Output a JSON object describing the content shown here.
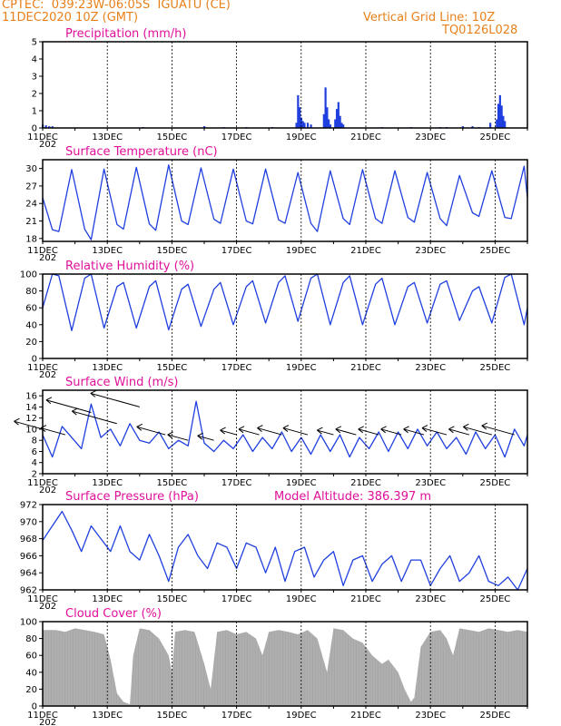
{
  "header": {
    "station": "CPTEC:  039:23W-06:05S  IGUATU (CE)",
    "run": "11DEC2020 10Z (GMT)",
    "grid_note": "Vertical Grid Line: 10Z",
    "code": "TQ0126L028"
  },
  "colors": {
    "header": "#e8801a",
    "title": "#e0109a",
    "series": "#1f3fdf",
    "cloud": "#a8a8a8"
  },
  "x_axis": {
    "labels": [
      "11DEC",
      "13DEC",
      "15DEC",
      "17DEC",
      "19DEC",
      "21DEC",
      "23DEC",
      "25DEC"
    ],
    "label_days": [
      11,
      13,
      15,
      17,
      19,
      21,
      23,
      25
    ],
    "range_days": [
      11,
      26
    ],
    "sub_label": "202"
  },
  "chart_data": [
    {
      "id": "precip",
      "type": "bar",
      "title": "Precipitation (mm/h)",
      "ylim": [
        0,
        5
      ],
      "yticks": [
        0,
        1,
        2,
        3,
        4,
        5
      ],
      "bars": [
        [
          11.0,
          0.2
        ],
        [
          11.1,
          0.15
        ],
        [
          11.2,
          0.1
        ],
        [
          11.3,
          0.1
        ],
        [
          14.1,
          0.05
        ],
        [
          16.0,
          0.1
        ],
        [
          16.6,
          0.05
        ],
        [
          17.3,
          0.05
        ],
        [
          18.1,
          0.05
        ],
        [
          18.85,
          0.3
        ],
        [
          18.9,
          1.9
        ],
        [
          18.95,
          1.2
        ],
        [
          19.0,
          0.6
        ],
        [
          19.05,
          0.4
        ],
        [
          19.1,
          0.3
        ],
        [
          19.2,
          0.3
        ],
        [
          19.3,
          0.2
        ],
        [
          19.7,
          0.8
        ],
        [
          19.75,
          2.35
        ],
        [
          19.8,
          1.2
        ],
        [
          19.85,
          0.5
        ],
        [
          19.9,
          0.2
        ],
        [
          20.05,
          0.5
        ],
        [
          20.1,
          1.1
        ],
        [
          20.15,
          1.5
        ],
        [
          20.2,
          0.7
        ],
        [
          20.25,
          0.3
        ],
        [
          20.3,
          0.2
        ],
        [
          21.5,
          0.05
        ],
        [
          22.4,
          0.05
        ],
        [
          23.3,
          0.05
        ],
        [
          23.5,
          0.05
        ],
        [
          24.0,
          0.1
        ],
        [
          24.3,
          0.1
        ],
        [
          24.5,
          0.05
        ],
        [
          24.85,
          0.3
        ],
        [
          25.05,
          0.5
        ],
        [
          25.1,
          1.4
        ],
        [
          25.15,
          1.9
        ],
        [
          25.2,
          1.3
        ],
        [
          25.25,
          0.7
        ],
        [
          25.3,
          0.4
        ]
      ]
    },
    {
      "id": "temp",
      "type": "line",
      "title": "Surface Temperature (nC)",
      "ylim": [
        17.5,
        31.5
      ],
      "yticks": [
        18,
        21,
        24,
        27,
        30
      ],
      "points": [
        [
          11.0,
          25.0
        ],
        [
          11.3,
          19.5
        ],
        [
          11.5,
          19.2
        ],
        [
          11.9,
          29.8
        ],
        [
          12.3,
          19.6
        ],
        [
          12.5,
          17.8
        ],
        [
          12.9,
          29.9
        ],
        [
          13.3,
          20.4
        ],
        [
          13.5,
          19.6
        ],
        [
          13.9,
          30.2
        ],
        [
          14.3,
          20.5
        ],
        [
          14.5,
          19.4
        ],
        [
          14.9,
          30.6
        ],
        [
          15.3,
          21.0
        ],
        [
          15.5,
          20.4
        ],
        [
          15.9,
          30.1
        ],
        [
          16.3,
          21.3
        ],
        [
          16.5,
          20.6
        ],
        [
          16.9,
          29.9
        ],
        [
          17.3,
          21.0
        ],
        [
          17.5,
          20.5
        ],
        [
          17.9,
          29.9
        ],
        [
          18.3,
          21.2
        ],
        [
          18.5,
          20.6
        ],
        [
          18.9,
          29.3
        ],
        [
          19.3,
          20.6
        ],
        [
          19.5,
          19.2
        ],
        [
          19.9,
          29.6
        ],
        [
          20.3,
          21.4
        ],
        [
          20.5,
          20.4
        ],
        [
          20.9,
          29.8
        ],
        [
          21.3,
          21.4
        ],
        [
          21.5,
          20.6
        ],
        [
          21.9,
          29.6
        ],
        [
          22.3,
          21.6
        ],
        [
          22.5,
          20.8
        ],
        [
          22.9,
          29.3
        ],
        [
          23.3,
          21.4
        ],
        [
          23.5,
          20.2
        ],
        [
          23.9,
          28.8
        ],
        [
          24.3,
          22.4
        ],
        [
          24.5,
          21.8
        ],
        [
          24.9,
          29.6
        ],
        [
          25.3,
          21.6
        ],
        [
          25.5,
          21.4
        ],
        [
          25.9,
          30.4
        ],
        [
          26.0,
          25.0
        ]
      ]
    },
    {
      "id": "rh",
      "type": "line",
      "title": "Relative Humidity (%)",
      "ylim": [
        0,
        100
      ],
      "yticks": [
        0,
        20,
        40,
        60,
        80,
        100
      ],
      "points": [
        [
          11.0,
          60
        ],
        [
          11.3,
          100
        ],
        [
          11.5,
          98
        ],
        [
          11.9,
          33
        ],
        [
          12.3,
          95
        ],
        [
          12.5,
          100
        ],
        [
          12.9,
          36
        ],
        [
          13.3,
          85
        ],
        [
          13.5,
          90
        ],
        [
          13.9,
          36
        ],
        [
          14.3,
          85
        ],
        [
          14.5,
          92
        ],
        [
          14.9,
          34
        ],
        [
          15.3,
          82
        ],
        [
          15.5,
          88
        ],
        [
          15.9,
          38
        ],
        [
          16.3,
          82
        ],
        [
          16.5,
          90
        ],
        [
          16.9,
          40
        ],
        [
          17.3,
          85
        ],
        [
          17.5,
          92
        ],
        [
          17.9,
          42
        ],
        [
          18.3,
          90
        ],
        [
          18.5,
          98
        ],
        [
          18.9,
          44
        ],
        [
          19.3,
          95
        ],
        [
          19.5,
          100
        ],
        [
          19.9,
          40
        ],
        [
          20.3,
          90
        ],
        [
          20.5,
          98
        ],
        [
          20.9,
          40
        ],
        [
          21.3,
          88
        ],
        [
          21.5,
          95
        ],
        [
          21.9,
          40
        ],
        [
          22.3,
          85
        ],
        [
          22.5,
          90
        ],
        [
          22.9,
          42
        ],
        [
          23.3,
          88
        ],
        [
          23.5,
          92
        ],
        [
          23.9,
          45
        ],
        [
          24.3,
          80
        ],
        [
          24.5,
          85
        ],
        [
          24.9,
          42
        ],
        [
          25.3,
          96
        ],
        [
          25.5,
          100
        ],
        [
          25.9,
          40
        ],
        [
          26.0,
          60
        ]
      ]
    },
    {
      "id": "wind",
      "type": "line",
      "title": "Surface Wind (m/s)",
      "ylim": [
        2,
        17
      ],
      "yticks": [
        2,
        4,
        6,
        8,
        10,
        12,
        14,
        16
      ],
      "points": [
        [
          11.0,
          9.0
        ],
        [
          11.3,
          5.0
        ],
        [
          11.6,
          10.5
        ],
        [
          11.9,
          8.5
        ],
        [
          12.2,
          6.5
        ],
        [
          12.5,
          14.5
        ],
        [
          12.8,
          8.5
        ],
        [
          13.1,
          10.0
        ],
        [
          13.4,
          7.0
        ],
        [
          13.7,
          11.0
        ],
        [
          14.0,
          8.0
        ],
        [
          14.3,
          7.5
        ],
        [
          14.6,
          9.5
        ],
        [
          14.9,
          6.5
        ],
        [
          15.2,
          8.0
        ],
        [
          15.5,
          7.0
        ],
        [
          15.75,
          15.0
        ],
        [
          16.0,
          7.5
        ],
        [
          16.3,
          6.0
        ],
        [
          16.6,
          8.0
        ],
        [
          16.9,
          6.5
        ],
        [
          17.2,
          9.0
        ],
        [
          17.5,
          6.0
        ],
        [
          17.8,
          8.5
        ],
        [
          18.1,
          6.5
        ],
        [
          18.4,
          9.5
        ],
        [
          18.7,
          6.0
        ],
        [
          19.0,
          8.5
        ],
        [
          19.3,
          5.5
        ],
        [
          19.6,
          9.0
        ],
        [
          19.9,
          6.0
        ],
        [
          20.2,
          9.0
        ],
        [
          20.5,
          5.0
        ],
        [
          20.8,
          8.5
        ],
        [
          21.1,
          6.5
        ],
        [
          21.4,
          9.5
        ],
        [
          21.7,
          6.0
        ],
        [
          22.0,
          9.5
        ],
        [
          22.3,
          6.5
        ],
        [
          22.6,
          10.0
        ],
        [
          22.9,
          7.0
        ],
        [
          23.2,
          9.5
        ],
        [
          23.5,
          6.5
        ],
        [
          23.8,
          8.5
        ],
        [
          24.1,
          5.5
        ],
        [
          24.4,
          9.5
        ],
        [
          24.7,
          6.5
        ],
        [
          25.0,
          9.0
        ],
        [
          25.3,
          5.0
        ],
        [
          25.6,
          10.0
        ],
        [
          25.9,
          7.0
        ],
        [
          26.0,
          9.0
        ]
      ],
      "arrows": [
        [
          11.0,
          10,
          -1,
          0.35
        ],
        [
          11.7,
          9,
          -1,
          0.3
        ],
        [
          12.5,
          13,
          -1,
          0.55
        ],
        [
          13.3,
          11,
          -1,
          0.55
        ],
        [
          14.0,
          14,
          -1,
          0.6
        ],
        [
          14.8,
          9,
          -1,
          0.35
        ],
        [
          15.5,
          8,
          -1,
          0.25
        ],
        [
          16.3,
          8,
          -1,
          0.2
        ],
        [
          17.0,
          9,
          -1,
          0.2
        ],
        [
          17.7,
          9,
          -1,
          0.25
        ],
        [
          18.4,
          9,
          -1,
          0.3
        ],
        [
          19.2,
          9,
          -1,
          0.3
        ],
        [
          20.0,
          9,
          -1,
          0.2
        ],
        [
          20.7,
          9,
          -1,
          0.25
        ],
        [
          21.4,
          9,
          -1,
          0.25
        ],
        [
          22.1,
          9,
          -1,
          0.25
        ],
        [
          22.8,
          9,
          -1,
          0.25
        ],
        [
          23.5,
          9,
          -1,
          0.3
        ],
        [
          24.2,
          9,
          -1,
          0.25
        ],
        [
          24.9,
          9,
          -1,
          0.35
        ],
        [
          25.6,
          9,
          -1,
          0.4
        ]
      ]
    },
    {
      "id": "pres",
      "type": "line",
      "title": "Surface Pressure (hPa)",
      "extra_label": "Model Altitude: 386.397 m",
      "ylim": [
        962,
        972
      ],
      "yticks": [
        962,
        964,
        966,
        968,
        970,
        972
      ],
      "points": [
        [
          11.0,
          967.8
        ],
        [
          11.3,
          969.5
        ],
        [
          11.6,
          971.2
        ],
        [
          11.9,
          969.0
        ],
        [
          12.2,
          966.5
        ],
        [
          12.5,
          969.5
        ],
        [
          12.8,
          968.0
        ],
        [
          13.1,
          966.5
        ],
        [
          13.4,
          969.5
        ],
        [
          13.7,
          966.5
        ],
        [
          14.0,
          965.5
        ],
        [
          14.3,
          968.5
        ],
        [
          14.6,
          966.0
        ],
        [
          14.9,
          963.0
        ],
        [
          15.2,
          967.0
        ],
        [
          15.5,
          968.5
        ],
        [
          15.8,
          966.0
        ],
        [
          16.1,
          964.5
        ],
        [
          16.4,
          967.5
        ],
        [
          16.7,
          967.0
        ],
        [
          17.0,
          964.5
        ],
        [
          17.3,
          967.5
        ],
        [
          17.6,
          967.0
        ],
        [
          17.9,
          964.0
        ],
        [
          18.2,
          967.0
        ],
        [
          18.5,
          963.0
        ],
        [
          18.8,
          966.5
        ],
        [
          19.1,
          967.0
        ],
        [
          19.4,
          963.5
        ],
        [
          19.7,
          965.5
        ],
        [
          20.0,
          966.5
        ],
        [
          20.3,
          962.5
        ],
        [
          20.6,
          965.5
        ],
        [
          20.9,
          966.0
        ],
        [
          21.2,
          963.0
        ],
        [
          21.5,
          965.0
        ],
        [
          21.8,
          966.0
        ],
        [
          22.1,
          963.0
        ],
        [
          22.4,
          965.5
        ],
        [
          22.7,
          965.5
        ],
        [
          23.0,
          962.5
        ],
        [
          23.3,
          964.5
        ],
        [
          23.6,
          966.0
        ],
        [
          23.9,
          963.0
        ],
        [
          24.2,
          964.0
        ],
        [
          24.5,
          966.0
        ],
        [
          24.8,
          963.0
        ],
        [
          25.1,
          962.5
        ],
        [
          25.4,
          963.5
        ],
        [
          25.7,
          962.0
        ],
        [
          26.0,
          964.5
        ]
      ]
    },
    {
      "id": "cloud",
      "type": "area",
      "title": "Cloud Cover (%)",
      "ylim": [
        0,
        100
      ],
      "yticks": [
        0,
        20,
        40,
        60,
        80,
        100
      ],
      "points": [
        [
          11.0,
          90
        ],
        [
          11.4,
          90
        ],
        [
          11.7,
          88
        ],
        [
          12.0,
          92
        ],
        [
          12.3,
          90
        ],
        [
          12.6,
          88
        ],
        [
          12.9,
          85
        ],
        [
          13.1,
          55
        ],
        [
          13.3,
          15
        ],
        [
          13.5,
          5
        ],
        [
          13.7,
          2
        ],
        [
          13.8,
          60
        ],
        [
          14.0,
          92
        ],
        [
          14.3,
          90
        ],
        [
          14.6,
          80
        ],
        [
          14.9,
          60
        ],
        [
          15.0,
          40
        ],
        [
          15.1,
          88
        ],
        [
          15.4,
          90
        ],
        [
          15.7,
          88
        ],
        [
          16.0,
          50
        ],
        [
          16.2,
          20
        ],
        [
          16.4,
          88
        ],
        [
          16.7,
          90
        ],
        [
          17.0,
          85
        ],
        [
          17.3,
          88
        ],
        [
          17.6,
          80
        ],
        [
          17.8,
          60
        ],
        [
          18.0,
          88
        ],
        [
          18.3,
          90
        ],
        [
          18.6,
          88
        ],
        [
          18.9,
          85
        ],
        [
          19.2,
          90
        ],
        [
          19.5,
          80
        ],
        [
          19.8,
          40
        ],
        [
          20.0,
          92
        ],
        [
          20.3,
          90
        ],
        [
          20.6,
          80
        ],
        [
          20.9,
          75
        ],
        [
          21.2,
          60
        ],
        [
          21.5,
          50
        ],
        [
          21.7,
          55
        ],
        [
          22.0,
          40
        ],
        [
          22.2,
          20
        ],
        [
          22.4,
          5
        ],
        [
          22.5,
          10
        ],
        [
          22.7,
          70
        ],
        [
          23.0,
          88
        ],
        [
          23.3,
          90
        ],
        [
          23.5,
          80
        ],
        [
          23.7,
          60
        ],
        [
          23.9,
          92
        ],
        [
          24.2,
          90
        ],
        [
          24.5,
          88
        ],
        [
          24.8,
          92
        ],
        [
          25.1,
          90
        ],
        [
          25.4,
          88
        ],
        [
          25.7,
          90
        ],
        [
          26.0,
          88
        ]
      ]
    }
  ]
}
